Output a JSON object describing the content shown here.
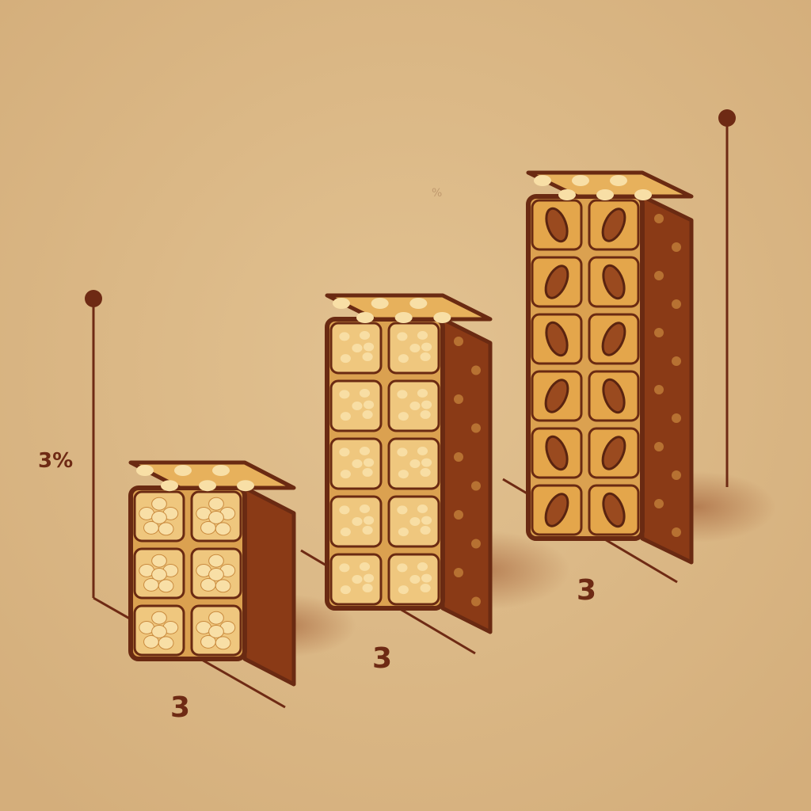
{
  "labels": {
    "axis_value": "3%",
    "stack1": "3",
    "stack2": "3",
    "stack3": "3",
    "faint_mark": "%"
  },
  "colors": {
    "background": "#d9b684",
    "line": "#6e2a14",
    "text": "#6e2a14",
    "bar_dark": "#6a2a12",
    "bar_top": "#e7b15c",
    "bar_front": "#dba150",
    "bar_side": "#8a3a16",
    "puff": "#f8dfa6",
    "nut": "#9a4a1f"
  },
  "stacks": [
    {
      "name": "puffed-rice-stack",
      "rows": 3,
      "columns": 2,
      "fill": "puffs"
    },
    {
      "name": "granola-stack",
      "rows": 5,
      "columns": 2,
      "fill": "grains"
    },
    {
      "name": "almond-stack",
      "rows": 6,
      "columns": 2,
      "fill": "almonds"
    }
  ]
}
